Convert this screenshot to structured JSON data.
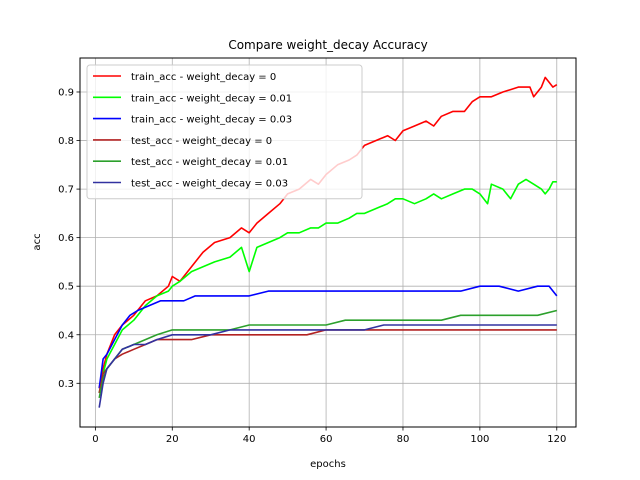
{
  "chart_data": {
    "type": "line",
    "title": "Compare weight_decay Accuracy",
    "xlabel": "epochs",
    "ylabel": "acc",
    "xlim": [
      -4,
      125
    ],
    "ylim": [
      0.21,
      0.97
    ],
    "xticks": [
      0,
      20,
      40,
      60,
      80,
      100,
      120
    ],
    "yticks": [
      0.3,
      0.4,
      0.5,
      0.6,
      0.7,
      0.8,
      0.9
    ],
    "grid": true,
    "legend_position": "top-left",
    "series": [
      {
        "name": "train_acc - weight_decay = 0",
        "color": "#ff0000",
        "x": [
          1,
          2,
          3,
          5,
          7,
          10,
          13,
          16,
          19,
          20,
          22,
          25,
          28,
          31,
          35,
          38,
          40,
          42,
          45,
          48,
          50,
          53,
          56,
          58,
          60,
          63,
          66,
          68,
          70,
          73,
          76,
          78,
          80,
          83,
          86,
          88,
          90,
          93,
          96,
          98,
          100,
          103,
          106,
          108,
          110,
          113,
          114,
          116,
          117,
          118,
          119,
          120
        ],
        "y": [
          0.29,
          0.33,
          0.36,
          0.4,
          0.42,
          0.44,
          0.47,
          0.48,
          0.5,
          0.52,
          0.51,
          0.54,
          0.57,
          0.59,
          0.6,
          0.62,
          0.61,
          0.63,
          0.65,
          0.67,
          0.69,
          0.7,
          0.72,
          0.71,
          0.73,
          0.75,
          0.76,
          0.77,
          0.79,
          0.8,
          0.81,
          0.8,
          0.82,
          0.83,
          0.84,
          0.83,
          0.85,
          0.86,
          0.86,
          0.88,
          0.89,
          0.89,
          0.9,
          0.905,
          0.91,
          0.91,
          0.89,
          0.91,
          0.93,
          0.92,
          0.91,
          0.915
        ]
      },
      {
        "name": "train_acc - weight_decay = 0.01",
        "color": "#00ff00",
        "x": [
          1,
          2,
          3,
          5,
          7,
          10,
          13,
          16,
          19,
          20,
          22,
          25,
          28,
          31,
          35,
          38,
          40,
          42,
          45,
          48,
          50,
          53,
          56,
          58,
          60,
          63,
          66,
          68,
          70,
          73,
          76,
          78,
          80,
          83,
          86,
          88,
          90,
          93,
          96,
          98,
          100,
          102,
          103,
          106,
          108,
          110,
          112,
          114,
          116,
          117,
          118,
          119,
          120
        ],
        "y": [
          0.28,
          0.32,
          0.35,
          0.38,
          0.41,
          0.43,
          0.46,
          0.48,
          0.49,
          0.5,
          0.51,
          0.53,
          0.54,
          0.55,
          0.56,
          0.58,
          0.53,
          0.58,
          0.59,
          0.6,
          0.61,
          0.61,
          0.62,
          0.62,
          0.63,
          0.63,
          0.64,
          0.65,
          0.65,
          0.66,
          0.67,
          0.68,
          0.68,
          0.67,
          0.68,
          0.69,
          0.68,
          0.69,
          0.7,
          0.7,
          0.69,
          0.67,
          0.71,
          0.7,
          0.68,
          0.71,
          0.72,
          0.71,
          0.7,
          0.69,
          0.7,
          0.715,
          0.715
        ]
      },
      {
        "name": "train_acc - weight_decay = 0.03",
        "color": "#0000ff",
        "x": [
          1,
          2,
          3,
          5,
          7,
          9,
          11,
          14,
          17,
          20,
          23,
          26,
          30,
          35,
          40,
          45,
          50,
          55,
          60,
          65,
          70,
          75,
          80,
          85,
          90,
          95,
          100,
          105,
          110,
          115,
          118,
          120
        ],
        "y": [
          0.29,
          0.35,
          0.36,
          0.39,
          0.42,
          0.44,
          0.45,
          0.46,
          0.47,
          0.47,
          0.47,
          0.48,
          0.48,
          0.48,
          0.48,
          0.49,
          0.49,
          0.49,
          0.49,
          0.49,
          0.49,
          0.49,
          0.49,
          0.49,
          0.49,
          0.49,
          0.5,
          0.5,
          0.49,
          0.5,
          0.5,
          0.48
        ]
      },
      {
        "name": "test_acc - weight_decay = 0",
        "color": "#b22222",
        "x": [
          1,
          2,
          3,
          5,
          7,
          10,
          13,
          16,
          20,
          25,
          30,
          35,
          40,
          45,
          50,
          55,
          60,
          65,
          70,
          75,
          80,
          85,
          90,
          95,
          100,
          105,
          110,
          115,
          120
        ],
        "y": [
          0.28,
          0.32,
          0.33,
          0.35,
          0.36,
          0.37,
          0.38,
          0.39,
          0.39,
          0.39,
          0.4,
          0.4,
          0.4,
          0.4,
          0.4,
          0.4,
          0.41,
          0.41,
          0.41,
          0.41,
          0.41,
          0.41,
          0.41,
          0.41,
          0.41,
          0.41,
          0.41,
          0.41,
          0.41
        ]
      },
      {
        "name": "test_acc - weight_decay = 0.01",
        "color": "#2ca02c",
        "x": [
          1,
          2,
          3,
          5,
          7,
          10,
          13,
          16,
          20,
          25,
          30,
          35,
          40,
          45,
          50,
          55,
          60,
          65,
          70,
          75,
          80,
          85,
          90,
          95,
          100,
          105,
          110,
          115,
          120
        ],
        "y": [
          0.27,
          0.31,
          0.33,
          0.35,
          0.37,
          0.38,
          0.39,
          0.4,
          0.41,
          0.41,
          0.41,
          0.41,
          0.42,
          0.42,
          0.42,
          0.42,
          0.42,
          0.43,
          0.43,
          0.43,
          0.43,
          0.43,
          0.43,
          0.44,
          0.44,
          0.44,
          0.44,
          0.44,
          0.45
        ]
      },
      {
        "name": "test_acc - weight_decay = 0.03",
        "color": "#3232a0",
        "x": [
          1,
          2,
          3,
          5,
          7,
          10,
          13,
          16,
          20,
          25,
          30,
          35,
          40,
          45,
          50,
          55,
          60,
          65,
          70,
          75,
          80,
          85,
          90,
          95,
          100,
          105,
          110,
          115,
          120
        ],
        "y": [
          0.25,
          0.3,
          0.33,
          0.35,
          0.37,
          0.38,
          0.38,
          0.39,
          0.4,
          0.4,
          0.4,
          0.41,
          0.41,
          0.41,
          0.41,
          0.41,
          0.41,
          0.41,
          0.41,
          0.42,
          0.42,
          0.42,
          0.42,
          0.42,
          0.42,
          0.42,
          0.42,
          0.42,
          0.42
        ]
      }
    ]
  }
}
